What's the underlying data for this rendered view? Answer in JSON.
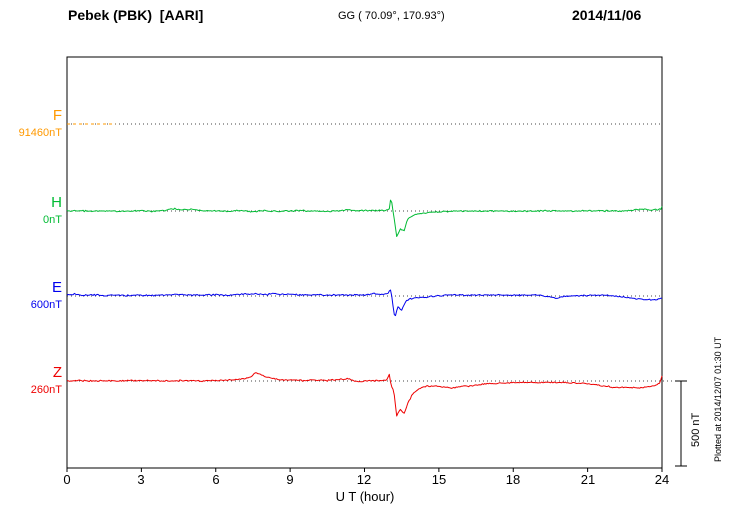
{
  "header": {
    "title": "Pebek (PBK)  [AARI]",
    "coords": "GG ( 70.09°, 170.93°)",
    "date": "2014/11/06"
  },
  "axis": {
    "label": "U T (hour)",
    "ticks": [
      "0",
      "3",
      "6",
      "9",
      "12",
      "15",
      "18",
      "21",
      "24"
    ]
  },
  "scalebar": {
    "label": "500 nT",
    "nT": 500
  },
  "footer_note": "Plotted at 2014/12/07 01:30 UT",
  "chart_data": {
    "type": "line",
    "title": "Pebek (PBK) [AARI] magnetogram",
    "date": "2014/11/06",
    "station_coords": "GG ( 70.09°, 170.93°)",
    "xlabel": "U T (hour)",
    "x_unit": "hour UT",
    "x_range": [
      0,
      24
    ],
    "x_ticks": [
      0,
      3,
      6,
      9,
      12,
      15,
      18,
      21,
      24
    ],
    "scalebar_nT": 500,
    "grid": "dotted baseline per channel",
    "legend_position": "left margin channel labels",
    "series": [
      {
        "name": "F",
        "baseline_label": "91460nT",
        "baseline_nT": 91460,
        "color": "#ff9900",
        "style": "dashed",
        "noise_nT": 0,
        "points": [
          [
            0,
            0
          ],
          [
            1.95,
            0
          ]
        ]
      },
      {
        "name": "H",
        "baseline_label": "0nT",
        "baseline_nT": 0,
        "color": "#00bb33",
        "style": "solid",
        "noise_nT": 5,
        "points": [
          [
            0,
            0
          ],
          [
            0.5,
            2
          ],
          [
            1,
            -2
          ],
          [
            1.5,
            1
          ],
          [
            2,
            -3
          ],
          [
            2.5,
            0
          ],
          [
            3,
            2
          ],
          [
            3.5,
            -2
          ],
          [
            4,
            4
          ],
          [
            4.3,
            14
          ],
          [
            4.6,
            6
          ],
          [
            5,
            10
          ],
          [
            5.4,
            3
          ],
          [
            6,
            1
          ],
          [
            6.5,
            -2
          ],
          [
            7,
            2
          ],
          [
            7.5,
            -4
          ],
          [
            8,
            1
          ],
          [
            8.5,
            -2
          ],
          [
            9,
            0
          ],
          [
            9.5,
            2
          ],
          [
            10,
            1
          ],
          [
            10.5,
            -2
          ],
          [
            11,
            2
          ],
          [
            11.4,
            7
          ],
          [
            11.8,
            1
          ],
          [
            12.2,
            4
          ],
          [
            12.6,
            2
          ],
          [
            12.9,
            5
          ],
          [
            13,
            12
          ],
          [
            13.07,
            85
          ],
          [
            13.15,
            0
          ],
          [
            13.3,
            -150
          ],
          [
            13.45,
            -105
          ],
          [
            13.6,
            -115
          ],
          [
            13.75,
            -45
          ],
          [
            13.95,
            -25
          ],
          [
            14.2,
            -15
          ],
          [
            14.6,
            -8
          ],
          [
            15,
            -4
          ],
          [
            15.5,
            -2
          ],
          [
            16,
            0
          ],
          [
            17,
            1
          ],
          [
            18,
            -1
          ],
          [
            19,
            1
          ],
          [
            20,
            0
          ],
          [
            21,
            1
          ],
          [
            22,
            0
          ],
          [
            22.7,
            2
          ],
          [
            23.2,
            12
          ],
          [
            23.5,
            5
          ],
          [
            23.8,
            7
          ],
          [
            23.95,
            10
          ],
          [
            24,
            28
          ]
        ]
      },
      {
        "name": "E",
        "baseline_label": "600nT",
        "baseline_nT": 600,
        "color": "#0000ee",
        "style": "solid",
        "noise_nT": 5,
        "points": [
          [
            0,
            5
          ],
          [
            0.3,
            12
          ],
          [
            0.6,
            3
          ],
          [
            1,
            8
          ],
          [
            1.5,
            3
          ],
          [
            2,
            6
          ],
          [
            2.5,
            3
          ],
          [
            3,
            5
          ],
          [
            3.5,
            3
          ],
          [
            4,
            6
          ],
          [
            4.5,
            10
          ],
          [
            5,
            5
          ],
          [
            5.5,
            6
          ],
          [
            6,
            8
          ],
          [
            6.5,
            5
          ],
          [
            7,
            10
          ],
          [
            7.5,
            12
          ],
          [
            8,
            8
          ],
          [
            8.3,
            14
          ],
          [
            8.6,
            8
          ],
          [
            9,
            10
          ],
          [
            9.5,
            6
          ],
          [
            10,
            8
          ],
          [
            10.5,
            5
          ],
          [
            11,
            8
          ],
          [
            11.3,
            3
          ],
          [
            11.6,
            8
          ],
          [
            12,
            5
          ],
          [
            12.4,
            14
          ],
          [
            12.7,
            8
          ],
          [
            12.95,
            18
          ],
          [
            13.05,
            35
          ],
          [
            13.12,
            -20
          ],
          [
            13.22,
            -130
          ],
          [
            13.35,
            -65
          ],
          [
            13.5,
            -85
          ],
          [
            13.65,
            -35
          ],
          [
            13.8,
            -20
          ],
          [
            14,
            -12
          ],
          [
            14.5,
            -6
          ],
          [
            15,
            2
          ],
          [
            15.5,
            8
          ],
          [
            16,
            5
          ],
          [
            17,
            6
          ],
          [
            18,
            5
          ],
          [
            19,
            5
          ],
          [
            19.6,
            -8
          ],
          [
            19.8,
            -14
          ],
          [
            20,
            -3
          ],
          [
            20.5,
            0
          ],
          [
            21,
            3
          ],
          [
            21.5,
            5
          ],
          [
            22,
            3
          ],
          [
            22.4,
            -5
          ],
          [
            22.8,
            -14
          ],
          [
            23.2,
            -20
          ],
          [
            23.6,
            -22
          ],
          [
            23.9,
            -18
          ],
          [
            24,
            -12
          ]
        ]
      },
      {
        "name": "Z",
        "baseline_label": "260nT",
        "baseline_nT": 260,
        "color": "#ee0000",
        "style": "solid",
        "noise_nT": 5,
        "points": [
          [
            0,
            0
          ],
          [
            0.5,
            3
          ],
          [
            1,
            0
          ],
          [
            1.5,
            3
          ],
          [
            2,
            0
          ],
          [
            2.5,
            2
          ],
          [
            3,
            3
          ],
          [
            3.5,
            1
          ],
          [
            4,
            0
          ],
          [
            4.5,
            2
          ],
          [
            5,
            3
          ],
          [
            5.5,
            0
          ],
          [
            6,
            3
          ],
          [
            6.5,
            6
          ],
          [
            7,
            10
          ],
          [
            7.4,
            22
          ],
          [
            7.6,
            50
          ],
          [
            7.8,
            40
          ],
          [
            8,
            25
          ],
          [
            8.3,
            15
          ],
          [
            8.6,
            8
          ],
          [
            9,
            6
          ],
          [
            9.5,
            3
          ],
          [
            10,
            5
          ],
          [
            10.5,
            3
          ],
          [
            11,
            8
          ],
          [
            11.3,
            16
          ],
          [
            11.5,
            3
          ],
          [
            11.8,
            -6
          ],
          [
            12,
            0
          ],
          [
            12.3,
            3
          ],
          [
            12.6,
            0
          ],
          [
            12.9,
            6
          ],
          [
            13,
            40
          ],
          [
            13.08,
            -30
          ],
          [
            13.18,
            -60
          ],
          [
            13.3,
            -205
          ],
          [
            13.45,
            -165
          ],
          [
            13.6,
            -190
          ],
          [
            13.78,
            -120
          ],
          [
            13.95,
            -75
          ],
          [
            14.15,
            -50
          ],
          [
            14.4,
            -35
          ],
          [
            14.7,
            -28
          ],
          [
            15,
            -32
          ],
          [
            15.5,
            -40
          ],
          [
            16,
            -32
          ],
          [
            16.5,
            -24
          ],
          [
            17,
            -16
          ],
          [
            17.5,
            -12
          ],
          [
            18,
            -10
          ],
          [
            18.5,
            -8
          ],
          [
            19,
            -10
          ],
          [
            19.5,
            -8
          ],
          [
            20,
            -10
          ],
          [
            20.5,
            -12
          ],
          [
            21,
            -15
          ],
          [
            21.3,
            -20
          ],
          [
            21.6,
            -30
          ],
          [
            22,
            -35
          ],
          [
            22.5,
            -38
          ],
          [
            23,
            -40
          ],
          [
            23.4,
            -35
          ],
          [
            23.7,
            -28
          ],
          [
            23.9,
            -12
          ],
          [
            24,
            30
          ]
        ]
      }
    ]
  }
}
